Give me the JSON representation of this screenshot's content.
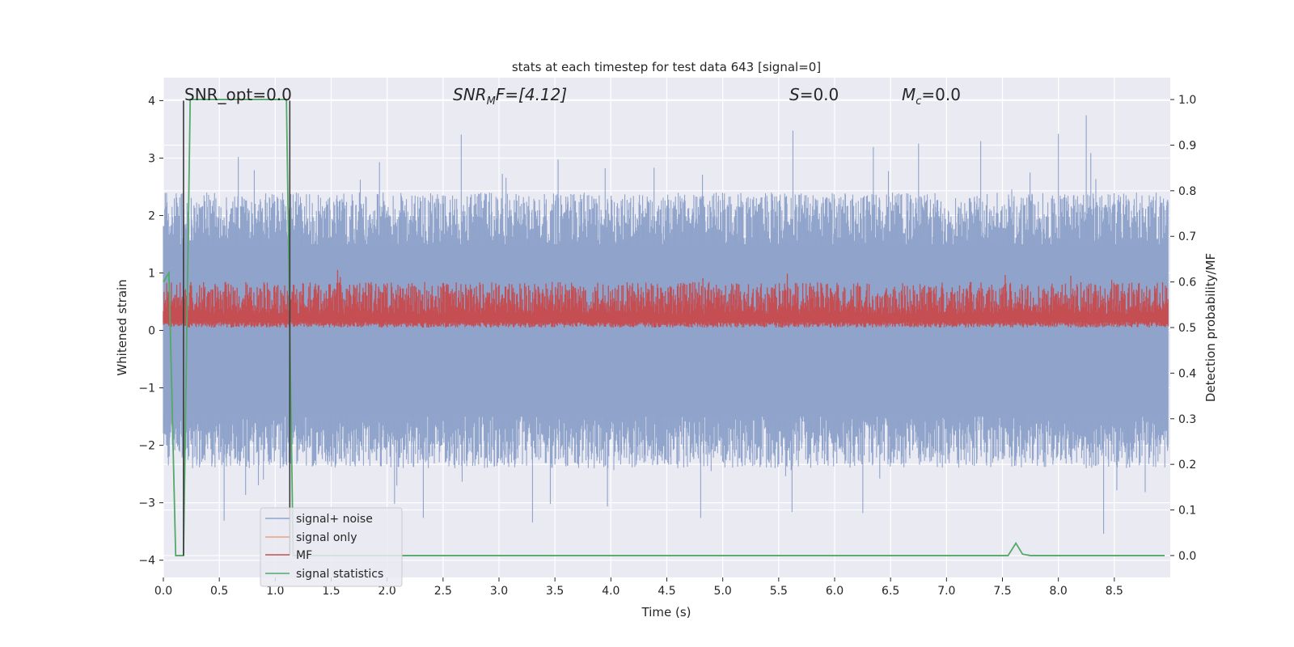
{
  "chart_data": {
    "type": "line",
    "title": "stats at each timestep for test data 643 [signal=0]",
    "xlabel": "Time (s)",
    "ylabel": "Whitened strain",
    "ylabel_right": "Detection probability/MF",
    "xlim": [
      0.0,
      9.0
    ],
    "ylim": [
      -4.3,
      4.4
    ],
    "ylim_right": [
      -0.048,
      1.048
    ],
    "xticks": [
      "0.0",
      "0.5",
      "1.0",
      "1.5",
      "2.0",
      "2.5",
      "3.0",
      "3.5",
      "4.0",
      "4.5",
      "5.0",
      "5.5",
      "6.0",
      "6.5",
      "7.0",
      "7.5",
      "8.0",
      "8.5"
    ],
    "yticks": [
      "4",
      "3",
      "2",
      "1",
      "0",
      "−1",
      "−2",
      "−3",
      "−4"
    ],
    "yticks_right": [
      "1.0",
      "0.9",
      "0.8",
      "0.7",
      "0.6",
      "0.5",
      "0.4",
      "0.3",
      "0.2",
      "0.1",
      "0.0"
    ],
    "grid": true,
    "annotations": {
      "snr_opt": "SNR_opt=0.0",
      "snr_mf_main": "SNR",
      "snr_mf_sub": "M",
      "snr_mf_rest": "F=[4.12]",
      "s_main": "S",
      "s_rest": "=0.0",
      "mc_main": "M",
      "mc_sub": "c",
      "mc_rest": "=0.0"
    },
    "legend": {
      "position": "lower-left",
      "entries": [
        "signal+ noise",
        "signal only",
        "MF",
        "signal statistics"
      ]
    },
    "colors": {
      "noise": "#8fa3cb",
      "signal_only": "#e8a283",
      "mf": "#c44e52",
      "stats": "#55a868",
      "markers": "#3a3a3a",
      "background": "#eaeaf2"
    },
    "series": [
      {
        "name": "signal+ noise",
        "axis": "left",
        "description_values": {
          "band_min": -1.5,
          "band_max": 1.5,
          "peak_max": 4.0,
          "peak_min": -3.65
        }
      },
      {
        "name": "signal only",
        "axis": "left",
        "values": [
          0,
          0
        ]
      },
      {
        "name": "MF",
        "axis": "right",
        "range": [
          0.5,
          0.6
        ]
      },
      {
        "name": "signal statistics",
        "axis": "right",
        "x": [
          0.0,
          0.05,
          0.11,
          0.18,
          0.24,
          0.3,
          1.1,
          1.16,
          1.22,
          7.55,
          7.62,
          7.68,
          7.75,
          8.95
        ],
        "values": [
          0.6,
          0.62,
          0.0,
          0.0,
          1.0,
          1.0,
          1.0,
          0.0,
          0.0,
          0.0,
          0.027,
          0.003,
          0.0,
          0.0
        ]
      },
      {
        "name": "markers",
        "axis": "left",
        "x": [
          0.18,
          1.13
        ]
      }
    ]
  }
}
